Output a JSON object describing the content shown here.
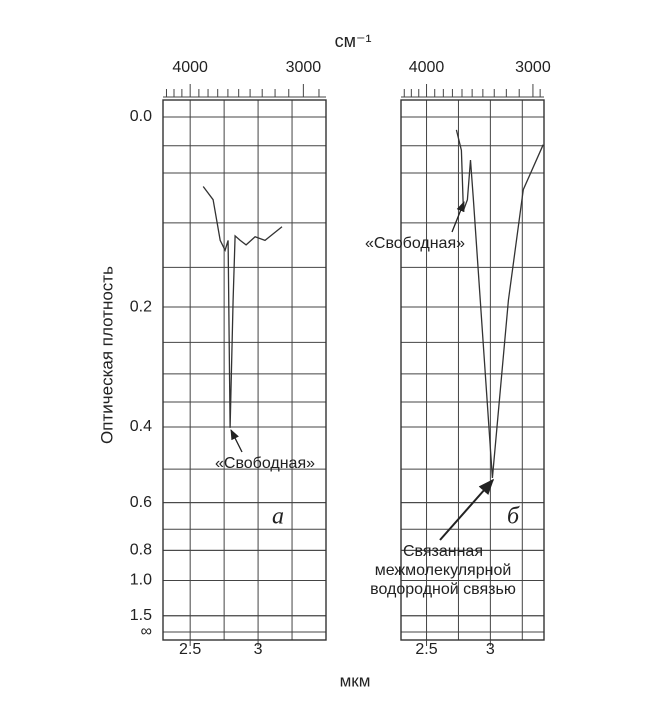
{
  "chart_data": [
    {
      "type": "line",
      "panel_label": "а",
      "ylabel": "Оптическая плотность",
      "xlabel": "мкм",
      "x2label": "см⁻¹",
      "yscale": "absorbance",
      "ylim": [
        0,
        null
      ],
      "yticks": [
        {
          "value": 0,
          "label": "0.0"
        },
        0.2,
        0.4,
        0.6,
        0.8,
        {
          "value": 1,
          "label": "1.0"
        },
        1.5,
        {
          "value": null,
          "label": "∞"
        }
      ],
      "ygrid": [
        0.025,
        0.05,
        0.1,
        0.15,
        0.2,
        0.25,
        0.3,
        0.35,
        0.4,
        0.5,
        0.6,
        0.7,
        0.8,
        1,
        1.5
      ],
      "xlim": [
        2.3,
        3.5
      ],
      "xticks": [
        2.5,
        3
      ],
      "xgrid": [
        2.5,
        2.75,
        3,
        3.25
      ],
      "x2ticks": [
        4000,
        3000
      ],
      "x2minorticks": [
        4300,
        4200,
        4100,
        3900,
        3800,
        3700,
        3600,
        3500,
        3400,
        3300,
        3200,
        3100,
        2900
      ],
      "annotations": [
        "«Свободная»"
      ],
      "series": [
        {
          "color": "#333333",
          "x": [
            2.596,
            2.669,
            2.721,
            2.757,
            2.779,
            2.794,
            2.816,
            2.831,
            2.868,
            2.912,
            2.978,
            3.051,
            3.176
          ],
          "values": [
            0.063,
            0.076,
            0.119,
            0.13,
            0.119,
            0.402,
            0.191,
            0.114,
            0.119,
            0.124,
            0.115,
            0.119,
            0.104
          ]
        }
      ]
    },
    {
      "type": "line",
      "panel_label": "б",
      "yscale": "absorbance",
      "ylim": [
        0,
        null
      ],
      "xlim": [
        2.3,
        3.42
      ],
      "xticks": [
        2.5,
        3
      ],
      "xgrid": [
        2.5,
        2.75,
        3,
        3.25
      ],
      "x2ticks": [
        4000,
        3000
      ],
      "x2minorticks": [
        4300,
        4200,
        4100,
        3900,
        3800,
        3700,
        3600,
        3500,
        3400,
        3300,
        3200,
        3100,
        2950
      ],
      "annotations": [
        "«Свободная»",
        "Связанная",
        "межмолекулярной",
        "водородной связью"
      ],
      "series": [
        {
          "color": "#333333",
          "x": [
            2.734,
            2.773,
            2.789,
            2.82,
            2.844,
            2.867,
            3.016,
            3.141,
            3.258,
            3.414
          ],
          "values": [
            0.011,
            0.029,
            0.087,
            0.076,
            0.038,
            0.076,
            0.524,
            0.191,
            0.066,
            0.024
          ]
        }
      ]
    }
  ]
}
